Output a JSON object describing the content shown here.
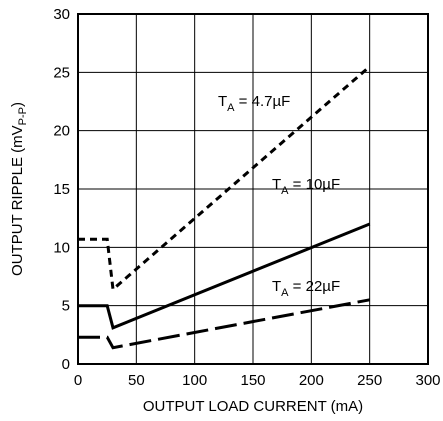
{
  "chart_data": {
    "type": "line",
    "xlabel": "OUTPUT LOAD CURRENT (mA)",
    "ylabel": {
      "main": "OUTPUT RIPPLE (mV",
      "sub": "P-P",
      "close": ")"
    },
    "xlim": [
      0,
      300
    ],
    "ylim": [
      0,
      30
    ],
    "x_ticks": [
      0,
      50,
      100,
      150,
      200,
      250,
      300
    ],
    "y_ticks": [
      0,
      5,
      10,
      15,
      20,
      25,
      30
    ],
    "grid": true,
    "series": [
      {
        "label": {
          "main": "T",
          "sub": "A",
          "rest": " = 4.7µF"
        },
        "line_style": "short-dash",
        "x": [
          0,
          25,
          30,
          250
        ],
        "y": [
          10.7,
          10.7,
          6.4,
          25.5
        ]
      },
      {
        "label": {
          "main": "T",
          "sub": "A",
          "rest": " = 10µF"
        },
        "line_style": "solid",
        "x": [
          0,
          25,
          30,
          250
        ],
        "y": [
          5.0,
          5.0,
          3.1,
          12.0
        ]
      },
      {
        "label": {
          "main": "T",
          "sub": "A",
          "rest": " = 22µF"
        },
        "line_style": "long-dash",
        "x": [
          0,
          25,
          30,
          250
        ],
        "y": [
          2.3,
          2.3,
          1.4,
          5.5
        ]
      }
    ]
  }
}
